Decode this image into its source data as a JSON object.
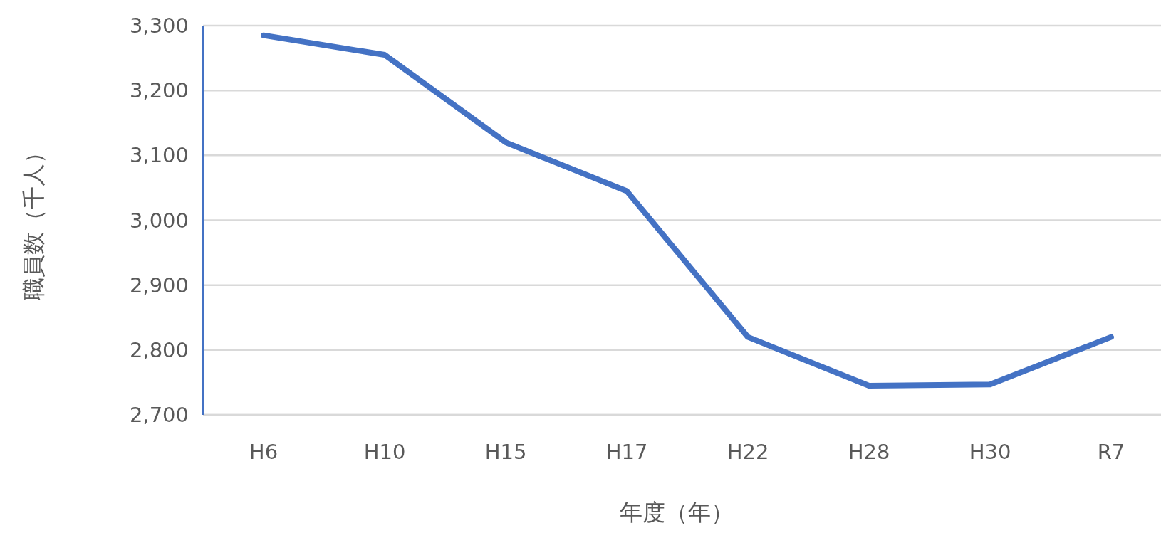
{
  "chart_data": {
    "type": "line",
    "xlabel": "年度（年）",
    "ylabel": "職員数（千人）",
    "categories": [
      "H6",
      "H10",
      "H15",
      "H17",
      "H22",
      "H28",
      "H30",
      "R7"
    ],
    "series": [
      {
        "color": "#4472c4",
        "values": [
          3285,
          3255,
          3120,
          3045,
          2820,
          2745,
          2747,
          2820
        ]
      }
    ],
    "ylim": [
      2700,
      3300
    ],
    "yticks": [
      {
        "value": 2700,
        "label": "2,700"
      },
      {
        "value": 2800,
        "label": "2,800"
      },
      {
        "value": 2900,
        "label": "2,900"
      },
      {
        "value": 3000,
        "label": "3,000"
      },
      {
        "value": 3100,
        "label": "3,100"
      },
      {
        "value": 3200,
        "label": "3,200"
      },
      {
        "value": 3300,
        "label": "3,300"
      }
    ],
    "grid": "y",
    "marker": "none",
    "line_style": "solid"
  }
}
